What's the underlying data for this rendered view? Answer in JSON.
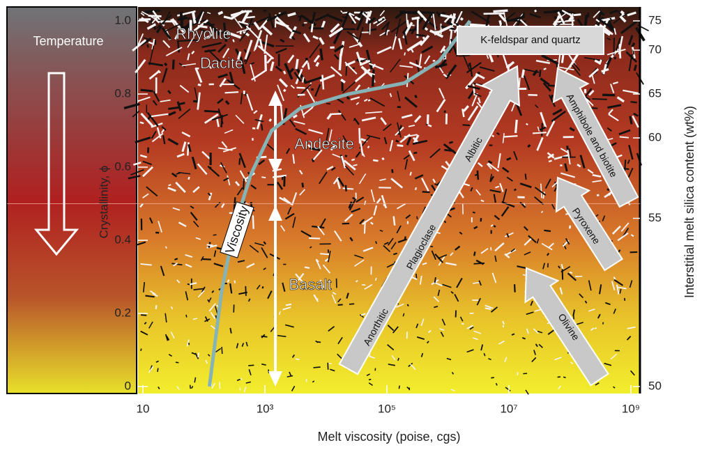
{
  "chart_data": {
    "type": "line",
    "x_label": "Melt viscosity (poise, cgs)",
    "y_label": "Crystallinity, ϕ",
    "y2_label": "Interstitial melt silica content (wt%)",
    "x_scale": "log",
    "xlim": [
      10,
      1000000000
    ],
    "xticks": [
      10,
      {
        "value": 1000,
        "label": "10³"
      },
      {
        "value": 100000,
        "label": "10⁵"
      },
      {
        "value": 10000000,
        "label": "10⁷"
      },
      {
        "value": 1000000000,
        "label": "10⁹"
      }
    ],
    "ylim": [
      0,
      1
    ],
    "yticks": [
      0,
      0.2,
      0.4,
      0.6,
      0.8,
      {
        "value": 1,
        "label": "1.0"
      }
    ],
    "y2ticks": [
      {
        "value": 50,
        "y": 0
      },
      {
        "value": 55,
        "y": 0.46
      },
      {
        "value": 60,
        "y": 0.68
      },
      {
        "value": 65,
        "y": 0.8
      },
      {
        "value": 70,
        "y": 0.92
      },
      {
        "value": 75,
        "y": 1
      }
    ],
    "series": [
      {
        "name": "Viscosity",
        "color": "#86b3b6",
        "x": [
          123,
          195,
          309,
          589,
          1290,
          3720,
          23400,
          194000,
          720000,
          2300000
        ],
        "values": [
          0,
          0.26,
          0.43,
          0.58,
          0.7,
          0.76,
          0.8,
          0.83,
          0.89,
          1
        ]
      }
    ],
    "annotations": {
      "temperature": "Temperature",
      "rhyolite": "Rhyolite",
      "dacite": "Dacite",
      "andesite": "Andesite",
      "basalt": "Basalt",
      "k_feldspar": "K-feldspar and quartz",
      "anorthitic": "Anorthitic",
      "plagioclase": "Plagioclase",
      "albitic": "Albitic",
      "amphibole": "Amphibole and biotite",
      "pyroxene": "Pyroxene",
      "olivine": "Olivine"
    }
  }
}
